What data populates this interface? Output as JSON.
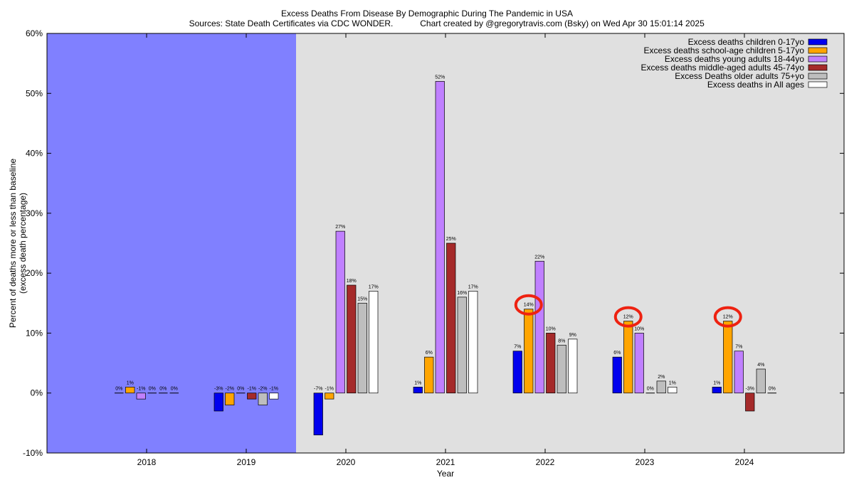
{
  "title": "Excess Deaths From Disease By Demographic During The Pandemic in USA",
  "subtitle_sources": "Sources: State Death Certificates via CDC WONDER.",
  "subtitle_credit": "Chart created by @gregorytravis.com (Bsky) on Wed Apr 30 15:01:14 2025",
  "colors": {
    "shaded_region": "#8080ff",
    "plot_background": "#e0e0e0",
    "highlight_circle": "#ee2211"
  },
  "chart_data": {
    "type": "bar",
    "title": "Excess Deaths From Disease By Demographic During The Pandemic in USA",
    "xlabel": "Year",
    "ylabel": "Percent of deaths more or less than baseline",
    "ylabel_sub": "(excess death percentage)",
    "ylim": [
      -10,
      60
    ],
    "yticks": [
      -10,
      0,
      10,
      20,
      30,
      40,
      50,
      60
    ],
    "ytick_labels": [
      "-10%",
      "0%",
      "10%",
      "20%",
      "30%",
      "40%",
      "50%",
      "60%"
    ],
    "grid": false,
    "legend_position": "top-right",
    "shaded_years": [
      "2018",
      "2019"
    ],
    "categories": [
      "2018",
      "2019",
      "2020",
      "2021",
      "2022",
      "2023",
      "2024"
    ],
    "series": [
      {
        "name": "Excess deaths children 0-17yo",
        "color": "#0000ee",
        "values": [
          0,
          -3,
          -7,
          1,
          7,
          6,
          1
        ],
        "labels": [
          "0%",
          "-3%",
          "-7%",
          "1%",
          "7%",
          "6%",
          "1%"
        ]
      },
      {
        "name": "Excess deaths school-age children 5-17yo",
        "color": "#ffa500",
        "values": [
          1,
          -2,
          -1,
          6,
          14,
          12,
          12
        ],
        "labels": [
          "1%",
          "-2%",
          "-1%",
          "6%",
          "14%",
          "12%",
          "12%"
        ]
      },
      {
        "name": "Excess deaths young adults 18-44yo",
        "color": "#c080ff",
        "values": [
          -1,
          0,
          27,
          52,
          22,
          10,
          7
        ],
        "labels": [
          "-1%",
          "0%",
          "27%",
          "52%",
          "22%",
          "10%",
          "7%"
        ]
      },
      {
        "name": "Excess deaths middle-aged adults 45-74yo",
        "color": "#a52a2a",
        "values": [
          0,
          -1,
          18,
          25,
          10,
          0,
          -3
        ],
        "labels": [
          "0%",
          "-1%",
          "18%",
          "25%",
          "10%",
          "0%",
          "-3%"
        ]
      },
      {
        "name": "Excess Deaths older adults 75+yo",
        "color": "#bebebe",
        "values": [
          0,
          -2,
          15,
          16,
          8,
          2,
          4
        ],
        "labels": [
          "0%",
          "-2%",
          "15%",
          "16%",
          "8%",
          "2%",
          "4%"
        ]
      },
      {
        "name": "Excess deaths in All ages",
        "color": "#ffffff",
        "values": [
          0,
          -1,
          17,
          17,
          9,
          1,
          0
        ],
        "labels": [
          "0%",
          "-1%",
          "17%",
          "17%",
          "9%",
          "1%",
          "0%"
        ]
      }
    ],
    "highlights": [
      {
        "category": "2022",
        "series": "Excess deaths school-age children 5-17yo"
      },
      {
        "category": "2023",
        "series": "Excess deaths school-age children 5-17yo"
      },
      {
        "category": "2024",
        "series": "Excess deaths school-age children 5-17yo"
      }
    ]
  }
}
